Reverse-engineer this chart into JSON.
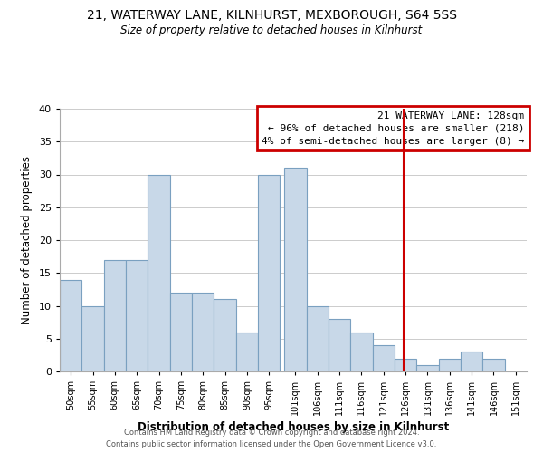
{
  "title_line1": "21, WATERWAY LANE, KILNHURST, MEXBOROUGH, S64 5SS",
  "title_line2": "Size of property relative to detached houses in Kilnhurst",
  "xlabel": "Distribution of detached houses by size in Kilnhurst",
  "ylabel": "Number of detached properties",
  "bar_labels": [
    "50sqm",
    "55sqm",
    "60sqm",
    "65sqm",
    "70sqm",
    "75sqm",
    "80sqm",
    "85sqm",
    "90sqm",
    "95sqm",
    "101sqm",
    "106sqm",
    "111sqm",
    "116sqm",
    "121sqm",
    "126sqm",
    "131sqm",
    "136sqm",
    "141sqm",
    "146sqm",
    "151sqm"
  ],
  "bar_heights": [
    14,
    10,
    17,
    17,
    30,
    12,
    12,
    11,
    6,
    30,
    31,
    10,
    8,
    6,
    4,
    2,
    1,
    2,
    3,
    2,
    0
  ],
  "bar_color": "#c8d8e8",
  "bar_edge_color": "#7aa0c0",
  "vline_x": 128,
  "vline_color": "#cc0000",
  "annotation_title": "21 WATERWAY LANE: 128sqm",
  "annotation_line1": "← 96% of detached houses are smaller (218)",
  "annotation_line2": "4% of semi-detached houses are larger (8) →",
  "annotation_box_color": "#cc0000",
  "ylim": [
    0,
    40
  ],
  "yticks": [
    0,
    5,
    10,
    15,
    20,
    25,
    30,
    35,
    40
  ],
  "footer_line1": "Contains HM Land Registry data © Crown copyright and database right 2024.",
  "footer_line2": "Contains public sector information licensed under the Open Government Licence v3.0.",
  "bin_starts": [
    50,
    55,
    60,
    65,
    70,
    75,
    80,
    85,
    90,
    95,
    101,
    106,
    111,
    116,
    121,
    126,
    131,
    136,
    141,
    146,
    151
  ],
  "bin_width": 5
}
